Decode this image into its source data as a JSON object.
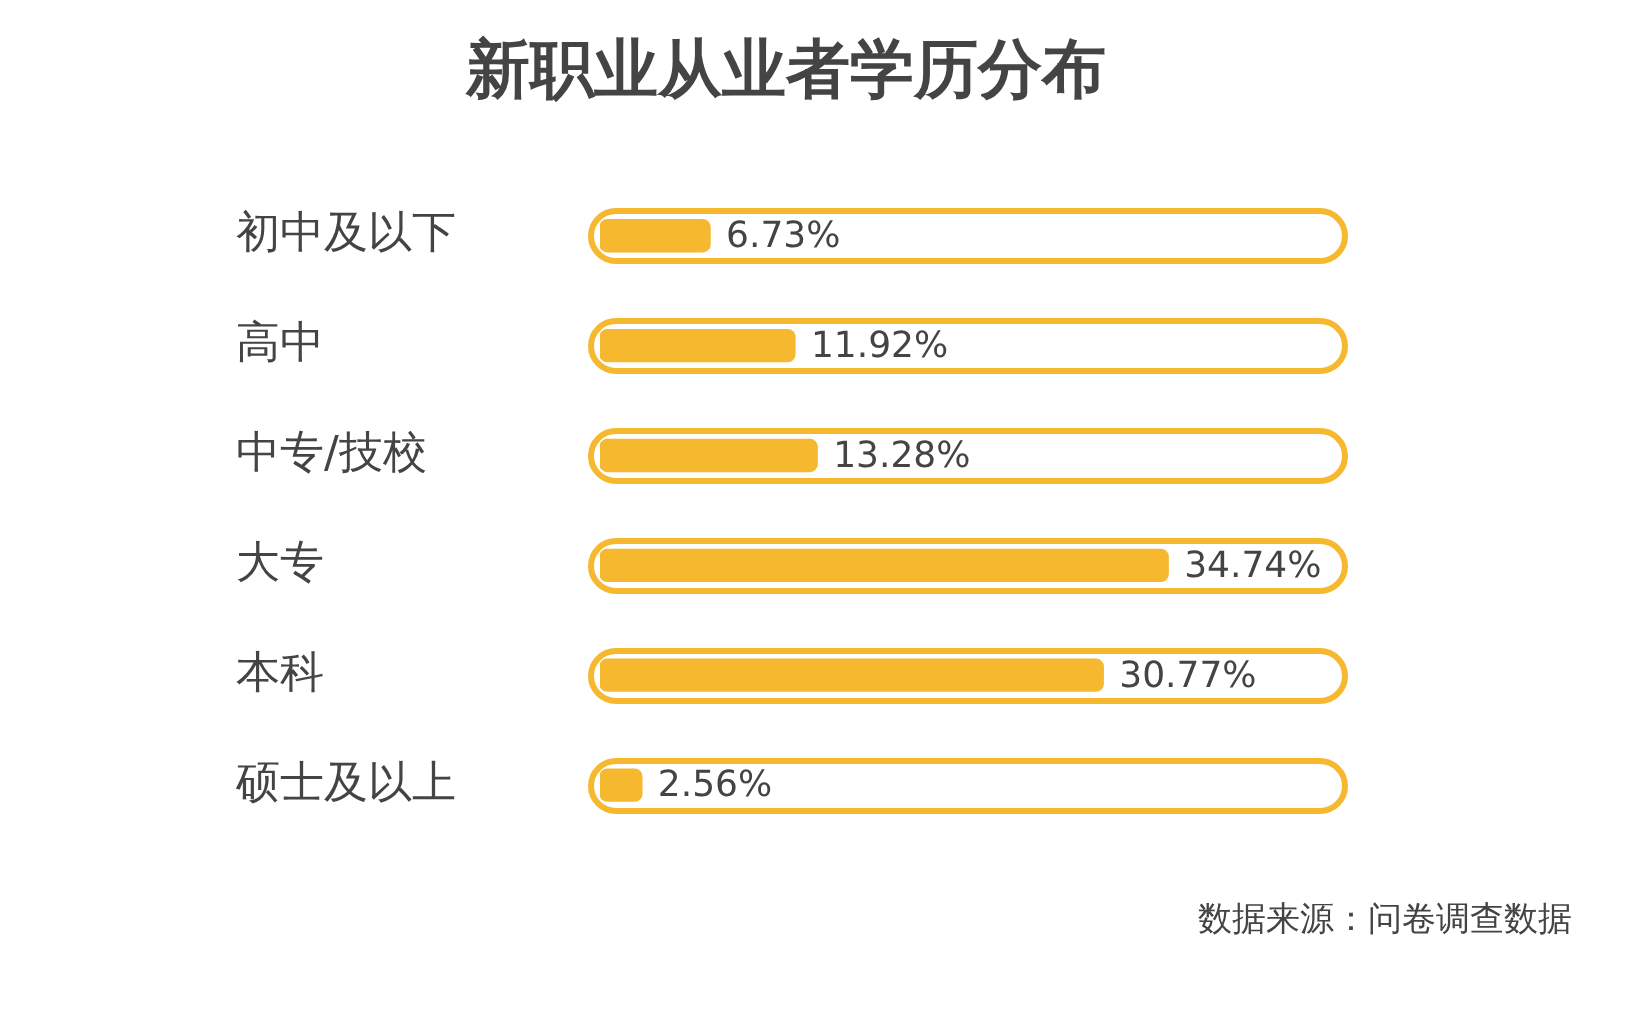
{
  "chart_data": {
    "type": "bar",
    "orientation": "horizontal",
    "title": "新职业从业者学历分布",
    "categories": [
      "初中及以下",
      "高中",
      "中专/技校",
      "大专",
      "本科",
      "硕士及以上"
    ],
    "values": [
      6.73,
      11.92,
      13.28,
      34.74,
      30.77,
      2.56
    ],
    "value_labels": [
      "6.73%",
      "11.92%",
      "13.28%",
      "34.74%",
      "30.77%",
      "2.56%"
    ],
    "color": "#f5b82e",
    "annotations": [
      "数据来源：问卷调查数据"
    ]
  }
}
